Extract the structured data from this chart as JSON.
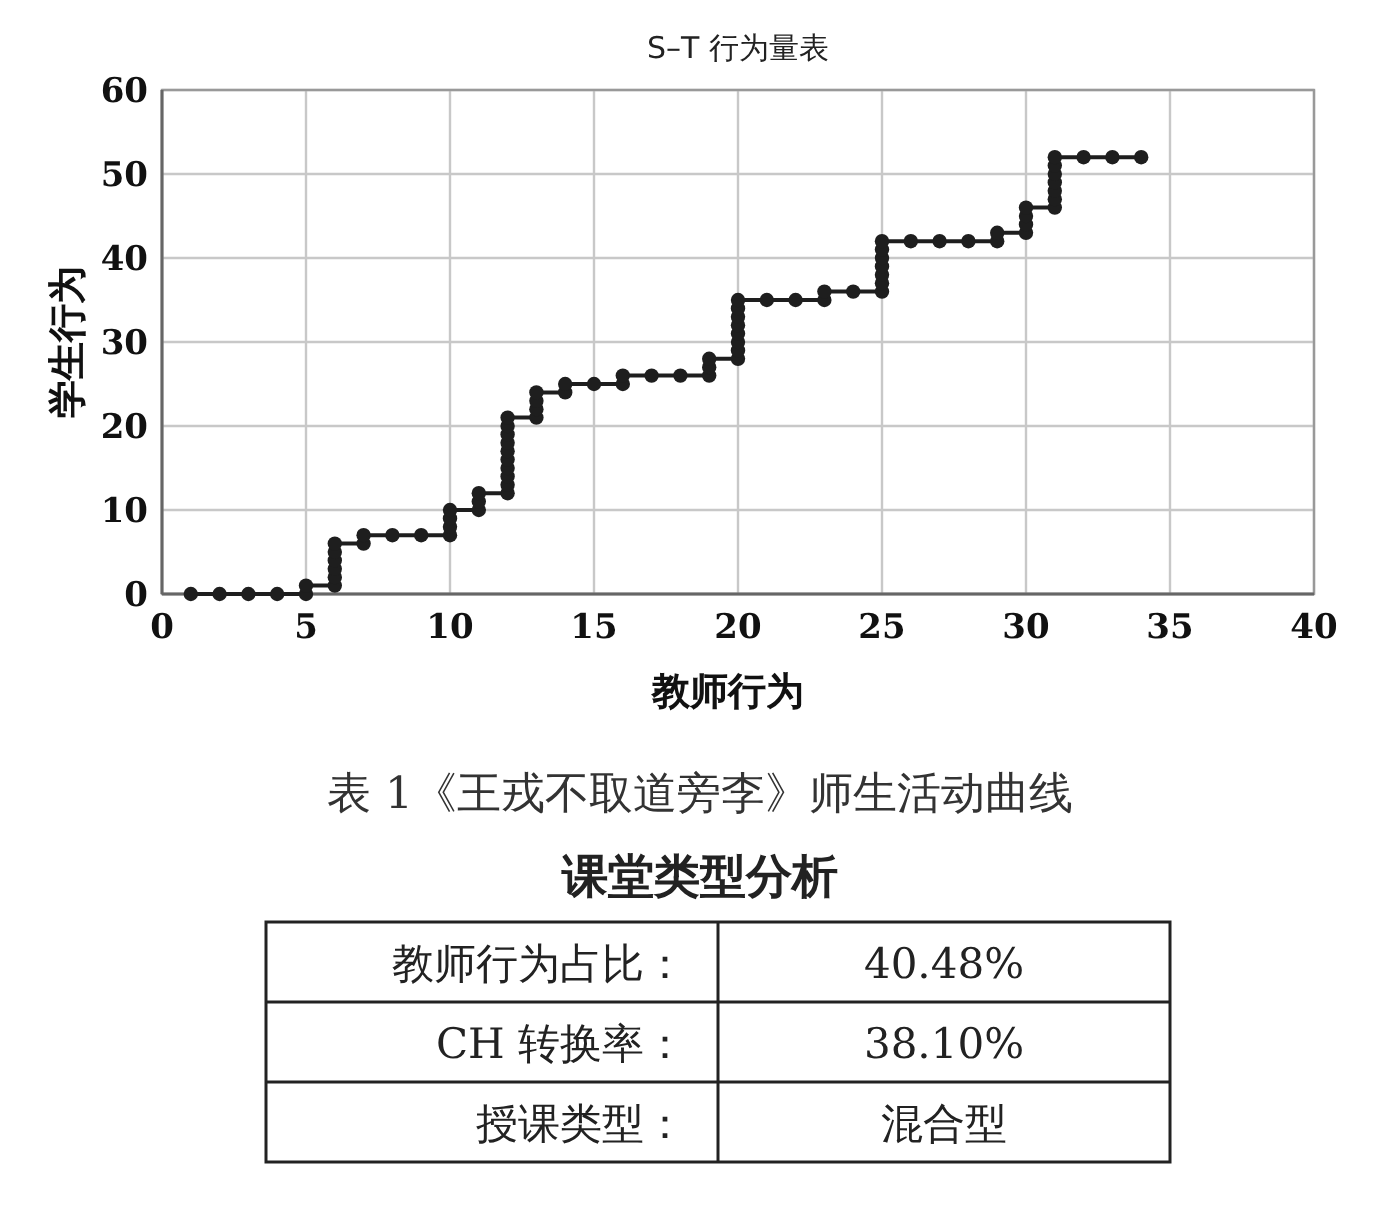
{
  "chart_data": [
    {
      "type": "line",
      "title": "S–T 行为量表",
      "xlabel": "教师行为",
      "ylabel": "学生行为",
      "xlim": [
        0,
        40
      ],
      "xticks": [
        0,
        5,
        10,
        15,
        20,
        25,
        30,
        35,
        40
      ],
      "ylim": [
        0,
        60
      ],
      "yticks": [
        0,
        10,
        20,
        30,
        40,
        50,
        60
      ],
      "grid": true,
      "marker": "circle",
      "line_style": "solid",
      "series": [
        {
          "color": "#1e1e1e",
          "x": [
            1,
            2,
            3,
            4,
            5,
            5,
            6,
            6,
            6,
            6,
            6,
            6,
            7,
            7,
            8,
            9,
            10,
            10,
            10,
            10,
            11,
            11,
            11,
            12,
            12,
            12,
            12,
            12,
            12,
            12,
            12,
            12,
            12,
            13,
            13,
            13,
            13,
            14,
            14,
            15,
            16,
            16,
            17,
            18,
            19,
            19,
            19,
            20,
            20,
            20,
            20,
            20,
            20,
            20,
            20,
            21,
            22,
            23,
            23,
            24,
            25,
            25,
            25,
            25,
            25,
            25,
            25,
            26,
            27,
            28,
            29,
            29,
            30,
            30,
            30,
            30,
            31,
            31,
            31,
            31,
            31,
            31,
            31,
            32,
            33,
            34
          ],
          "values": [
            0,
            0,
            0,
            0,
            0,
            1,
            1,
            2,
            3,
            4,
            5,
            6,
            6,
            7,
            7,
            7,
            7,
            8,
            9,
            10,
            10,
            11,
            12,
            12,
            13,
            14,
            15,
            16,
            17,
            18,
            19,
            20,
            21,
            21,
            22,
            23,
            24,
            24,
            25,
            25,
            25,
            26,
            26,
            26,
            26,
            27,
            28,
            28,
            29,
            30,
            31,
            32,
            33,
            34,
            35,
            35,
            35,
            35,
            36,
            36,
            36,
            37,
            38,
            39,
            40,
            41,
            42,
            42,
            42,
            42,
            42,
            43,
            43,
            44,
            45,
            46,
            46,
            47,
            48,
            49,
            50,
            51,
            52,
            52,
            52,
            52
          ]
        }
      ],
      "annotations": [
        "表 1《王戎不取道旁李》师生活动曲线"
      ]
    },
    {
      "type": "other",
      "title": "课堂类型分析",
      "annotations": [
        "教师行为占比：",
        "40.48%",
        "CH 转换率：",
        "38.10%",
        "授课类型：",
        "混合型"
      ]
    }
  ]
}
